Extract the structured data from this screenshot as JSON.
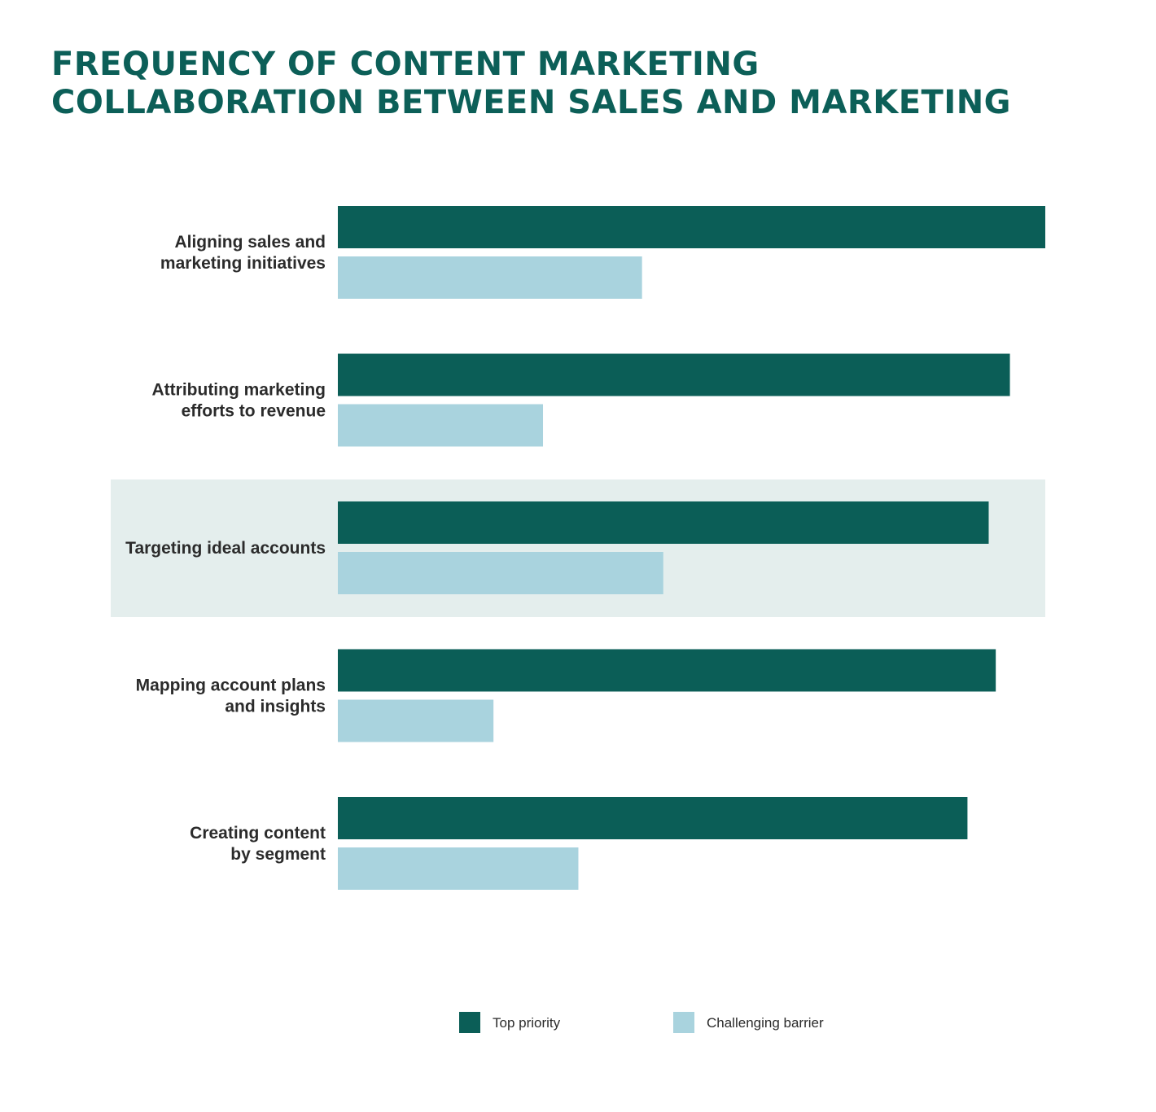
{
  "title": {
    "line1": "FREQUENCY OF CONTENT MARKETING",
    "line2": "COLLABORATION BETWEEN SALES AND MARKETING"
  },
  "colors": {
    "title": "#0c5f58",
    "top_priority": "#0b5e57",
    "challenging_barrier": "#a9d3de",
    "highlight_band": "#e4eeed",
    "label": "#2b2b2b"
  },
  "chart_data": {
    "type": "bar",
    "orientation": "horizontal",
    "title": "FREQUENCY OF CONTENT MARKETING COLLABORATION BETWEEN SALES AND MARKETING",
    "categories": [
      [
        "Aligning sales and",
        "marketing initiatives"
      ],
      [
        "Attributing marketing",
        "efforts to revenue"
      ],
      [
        "Targeting ideal accounts"
      ],
      [
        "Mapping account plans",
        "and insights"
      ],
      [
        "Creating content",
        "by segment"
      ]
    ],
    "series": [
      {
        "name": "Top priority",
        "values": [
          100,
          95,
          92,
          93,
          89
        ]
      },
      {
        "name": "Challenging barrier",
        "values": [
          43,
          29,
          46,
          22,
          34
        ]
      }
    ],
    "xlim": [
      0,
      100
    ],
    "axis_labels_shown": false,
    "grid": false,
    "highlighted_category": 2,
    "legend": {
      "position": "bottom",
      "items": [
        "Top priority",
        "Challenging barrier"
      ]
    }
  }
}
